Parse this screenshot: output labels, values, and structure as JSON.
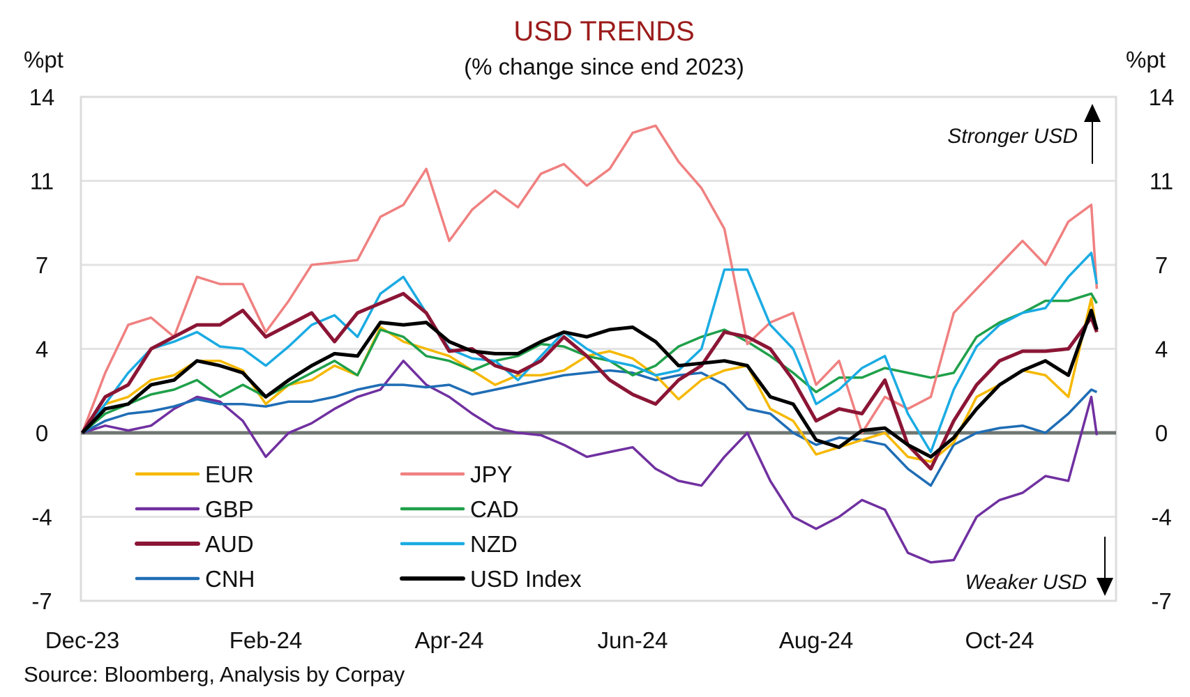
{
  "chart_data": {
    "type": "line",
    "title": "USD TRENDS",
    "subtitle": "(% change since end 2023)",
    "ylabel_left": "%pt",
    "ylabel_right": "%pt",
    "xlabel": "",
    "ylim": [
      -7,
      14
    ],
    "y_ticks": [
      14,
      10.5,
      7,
      3.5,
      0,
      -3.5,
      -7
    ],
    "y_tick_labels": [
      "14",
      "11",
      "7",
      "4",
      "0",
      "-4",
      "-7"
    ],
    "x_unit": "months since end of Dec 2023",
    "xlim": [
      0,
      11.6
    ],
    "x_ticks": [
      0,
      2,
      4,
      6,
      8,
      10
    ],
    "x_tick_labels": [
      "Dec-23",
      "Feb-24",
      "Apr-24",
      "Jun-24",
      "Aug-24",
      "Oct-24"
    ],
    "grid": true,
    "zero_line": true,
    "legend_position": "bottom-left, two columns",
    "annotations": [
      {
        "text": "Stronger USD",
        "arrow": "up",
        "position": "top-right"
      },
      {
        "text": "Weaker USD",
        "arrow": "down",
        "position": "bottom-right"
      }
    ],
    "source": "Source: Bloomberg, Analysis by Corpay",
    "x": [
      0,
      0.25,
      0.5,
      0.75,
      1,
      1.25,
      1.5,
      1.75,
      2,
      2.25,
      2.5,
      2.75,
      3,
      3.25,
      3.5,
      3.75,
      4,
      4.25,
      4.5,
      4.75,
      5,
      5.25,
      5.5,
      5.75,
      6,
      6.25,
      6.5,
      6.75,
      7,
      7.25,
      7.5,
      7.75,
      8,
      8.25,
      8.5,
      8.75,
      9,
      9.25,
      9.5,
      9.75,
      10,
      10.25,
      10.5,
      10.75,
      11,
      11.06
    ],
    "series": [
      {
        "name": "EUR",
        "color": "#f5b800",
        "values": [
          0,
          1.2,
          1.5,
          2.2,
          2.4,
          3.0,
          3.0,
          2.6,
          1.2,
          2.0,
          2.2,
          2.8,
          2.4,
          4.4,
          3.8,
          3.5,
          3.2,
          2.6,
          2.0,
          2.4,
          2.4,
          2.6,
          3.2,
          3.4,
          3.1,
          2.4,
          1.4,
          2.2,
          2.6,
          2.8,
          1.0,
          0.5,
          -0.9,
          -0.6,
          -0.3,
          0.0,
          -1.0,
          -1.2,
          -0.4,
          1.5,
          2.0,
          2.6,
          2.4,
          1.5,
          5.6,
          4.2
        ]
      },
      {
        "name": "JPY",
        "color": "#f08080",
        "values": [
          0,
          2.5,
          4.5,
          4.8,
          4.0,
          6.5,
          6.2,
          6.2,
          4.2,
          5.5,
          7.0,
          7.1,
          7.2,
          9.0,
          9.5,
          11.0,
          8.0,
          9.3,
          10.1,
          9.4,
          10.8,
          11.2,
          10.3,
          11.0,
          12.5,
          12.8,
          11.3,
          10.2,
          8.5,
          3.7,
          4.6,
          5.0,
          2.0,
          3.0,
          0.0,
          1.5,
          1.0,
          1.5,
          5.0,
          6.0,
          7.0,
          8.0,
          7.0,
          8.8,
          9.5,
          6.0
        ]
      },
      {
        "name": "GBP",
        "color": "#7030a0",
        "values": [
          0,
          0.3,
          0.1,
          0.3,
          1.0,
          1.5,
          1.3,
          0.5,
          -1.0,
          0.0,
          0.4,
          1.0,
          1.5,
          1.8,
          3.0,
          2.0,
          1.5,
          0.8,
          0.2,
          0.0,
          -0.1,
          -0.5,
          -1.0,
          -0.8,
          -0.6,
          -1.5,
          -2.0,
          -2.2,
          -1.0,
          0.0,
          -2.0,
          -3.5,
          -4.0,
          -3.5,
          -2.8,
          -3.2,
          -5.0,
          -5.4,
          -5.3,
          -3.5,
          -2.8,
          -2.5,
          -1.8,
          -2.0,
          1.5,
          -0.1
        ]
      },
      {
        "name": "CAD",
        "color": "#1fa04a",
        "values": [
          0,
          0.8,
          1.2,
          1.6,
          1.8,
          2.2,
          1.5,
          2.0,
          1.5,
          2.0,
          2.5,
          3.0,
          2.4,
          4.3,
          4.0,
          3.2,
          3.0,
          2.6,
          3.0,
          3.2,
          3.7,
          3.6,
          3.2,
          3.0,
          2.4,
          2.8,
          3.6,
          4.0,
          4.3,
          3.8,
          3.2,
          2.5,
          1.7,
          2.3,
          2.3,
          2.7,
          2.5,
          2.3,
          2.5,
          4.0,
          4.6,
          5.0,
          5.5,
          5.5,
          5.8,
          5.4
        ]
      },
      {
        "name": "AUD",
        "color": "#8b1535",
        "values": [
          0,
          1.5,
          2.0,
          3.5,
          4.0,
          4.5,
          4.5,
          5.1,
          4.0,
          4.5,
          5.0,
          3.8,
          5.0,
          5.4,
          5.8,
          5.0,
          3.4,
          3.5,
          2.8,
          2.5,
          3.0,
          4.0,
          3.2,
          2.2,
          1.6,
          1.2,
          2.2,
          2.8,
          4.2,
          4.0,
          3.5,
          2.2,
          0.5,
          1.0,
          0.8,
          2.2,
          -0.5,
          -1.5,
          0.5,
          2.0,
          3.0,
          3.4,
          3.4,
          3.5,
          4.8,
          4.2
        ]
      },
      {
        "name": "NZD",
        "color": "#1aabe3",
        "values": [
          0,
          1.2,
          2.5,
          3.5,
          3.8,
          4.2,
          3.6,
          3.5,
          2.8,
          3.6,
          4.5,
          4.9,
          4.0,
          5.8,
          6.5,
          5.0,
          3.5,
          3.1,
          3.0,
          2.2,
          3.2,
          4.2,
          3.5,
          3.0,
          2.8,
          2.4,
          2.6,
          3.5,
          6.8,
          6.8,
          4.5,
          3.5,
          1.2,
          1.8,
          2.7,
          3.2,
          0.8,
          -0.8,
          1.8,
          3.6,
          4.5,
          5.0,
          5.2,
          6.5,
          7.5,
          6.2
        ]
      },
      {
        "name": "CNH",
        "color": "#1f6db5",
        "values": [
          0,
          0.5,
          0.8,
          0.9,
          1.1,
          1.4,
          1.2,
          1.2,
          1.1,
          1.3,
          1.3,
          1.5,
          1.8,
          2.0,
          2.0,
          1.9,
          2.0,
          1.6,
          1.8,
          2.0,
          2.2,
          2.4,
          2.5,
          2.6,
          2.5,
          2.2,
          2.4,
          2.5,
          2.0,
          1.0,
          0.8,
          0.0,
          -0.5,
          -0.2,
          -0.3,
          -0.5,
          -1.5,
          -2.2,
          -0.5,
          0.0,
          0.2,
          0.3,
          0.0,
          0.8,
          1.8,
          1.7
        ]
      },
      {
        "name": "USD Index",
        "color": "#000000",
        "values": [
          0,
          1.0,
          1.2,
          2.0,
          2.2,
          3.0,
          2.8,
          2.5,
          1.5,
          2.2,
          2.8,
          3.3,
          3.2,
          4.6,
          4.5,
          4.6,
          3.8,
          3.4,
          3.3,
          3.3,
          3.8,
          4.2,
          4.0,
          4.3,
          4.4,
          3.8,
          2.8,
          2.9,
          3.0,
          2.8,
          1.5,
          1.2,
          -0.3,
          -0.6,
          0.1,
          0.2,
          -0.5,
          -1.0,
          -0.2,
          1.0,
          2.0,
          2.6,
          3.0,
          2.4,
          5.1,
          4.3
        ]
      }
    ]
  }
}
